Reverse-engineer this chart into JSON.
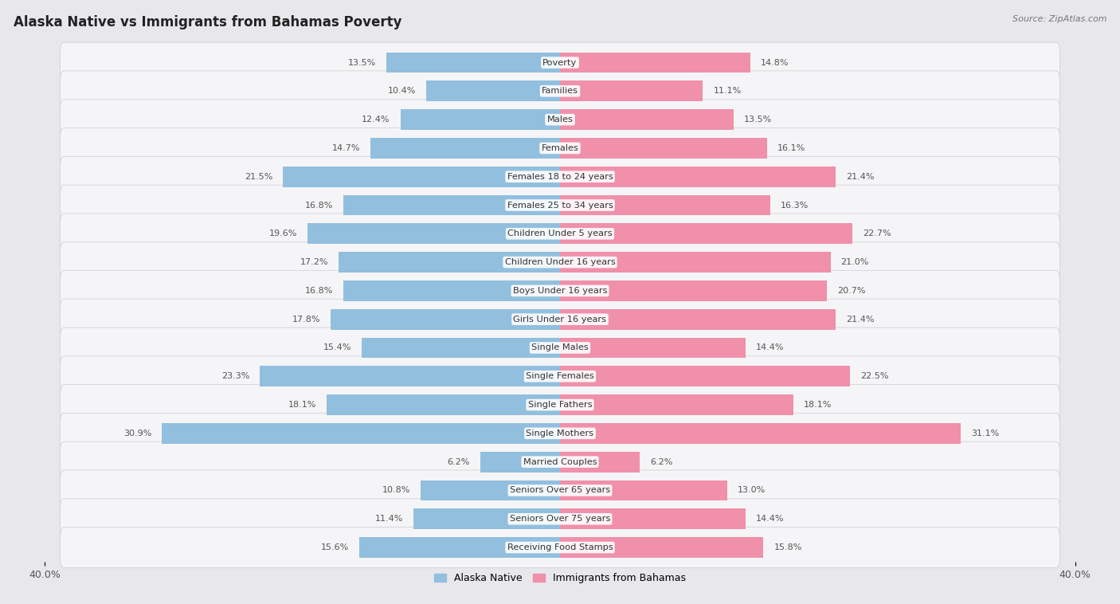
{
  "title": "Alaska Native vs Immigrants from Bahamas Poverty",
  "source": "Source: ZipAtlas.com",
  "categories": [
    "Poverty",
    "Families",
    "Males",
    "Females",
    "Females 18 to 24 years",
    "Females 25 to 34 years",
    "Children Under 5 years",
    "Children Under 16 years",
    "Boys Under 16 years",
    "Girls Under 16 years",
    "Single Males",
    "Single Females",
    "Single Fathers",
    "Single Mothers",
    "Married Couples",
    "Seniors Over 65 years",
    "Seniors Over 75 years",
    "Receiving Food Stamps"
  ],
  "alaska_native": [
    13.5,
    10.4,
    12.4,
    14.7,
    21.5,
    16.8,
    19.6,
    17.2,
    16.8,
    17.8,
    15.4,
    23.3,
    18.1,
    30.9,
    6.2,
    10.8,
    11.4,
    15.6
  ],
  "immigrants_bahamas": [
    14.8,
    11.1,
    13.5,
    16.1,
    21.4,
    16.3,
    22.7,
    21.0,
    20.7,
    21.4,
    14.4,
    22.5,
    18.1,
    31.1,
    6.2,
    13.0,
    14.4,
    15.8
  ],
  "alaska_color": "#92bfde",
  "bahamas_color": "#f090aa",
  "row_bg_color": "#e8e8ec",
  "row_inner_color": "#f5f5f7",
  "background_color": "#e8e8ec",
  "axis_limit": 40.0,
  "bar_height": 0.72,
  "title_fontsize": 12,
  "label_fontsize": 8.2,
  "value_fontsize": 8.0,
  "tick_fontsize": 9,
  "legend_fontsize": 9
}
